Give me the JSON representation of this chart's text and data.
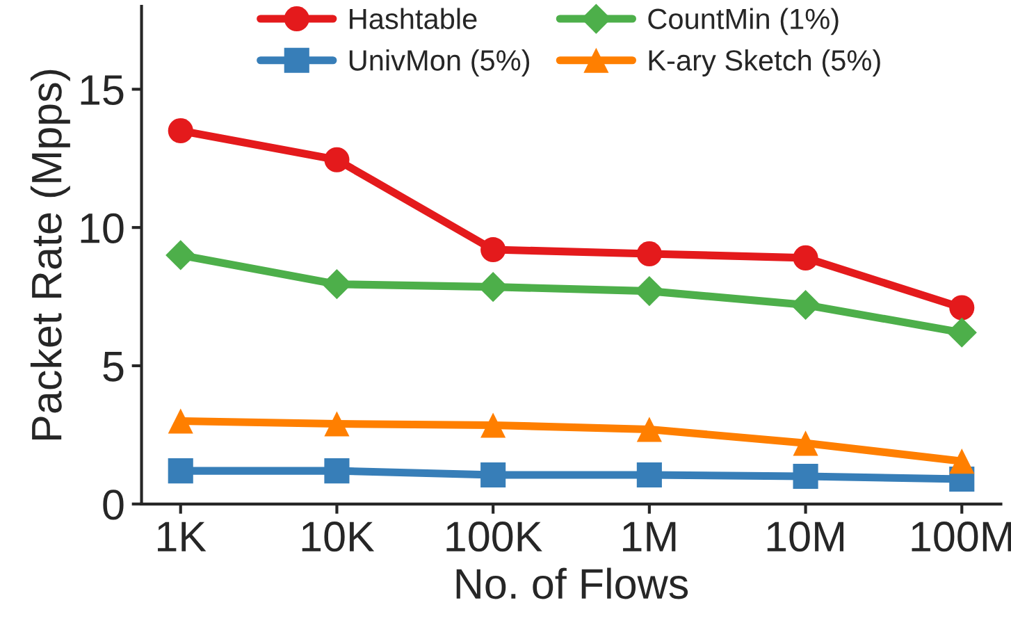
{
  "chart_data": {
    "type": "line",
    "xlabel": "No. of Flows",
    "ylabel": "Packet Rate (Mpps)",
    "categories": [
      "1K",
      "10K",
      "100K",
      "1M",
      "10M",
      "100M"
    ],
    "series": [
      {
        "name": "Hashtable",
        "color": "#e41a1c",
        "marker": "circle",
        "values": [
          13.5,
          12.45,
          9.2,
          9.05,
          8.9,
          7.1
        ]
      },
      {
        "name": "UnivMon (5%)",
        "color": "#377eb8",
        "marker": "square",
        "values": [
          1.2,
          1.2,
          1.05,
          1.05,
          1.0,
          0.9
        ]
      },
      {
        "name": "CountMin (1%)",
        "color": "#4daf4a",
        "marker": "diamond",
        "values": [
          9.0,
          7.95,
          7.85,
          7.7,
          7.2,
          6.2
        ]
      },
      {
        "name": "K-ary Sketch (5%)",
        "color": "#ff7f00",
        "marker": "triangle",
        "values": [
          3.0,
          2.9,
          2.85,
          2.7,
          2.2,
          1.55
        ]
      }
    ],
    "ylim": [
      0,
      18
    ],
    "yticks": [
      0,
      5,
      10,
      15
    ],
    "grid": false,
    "legend": "top",
    "line_style": "solid"
  }
}
